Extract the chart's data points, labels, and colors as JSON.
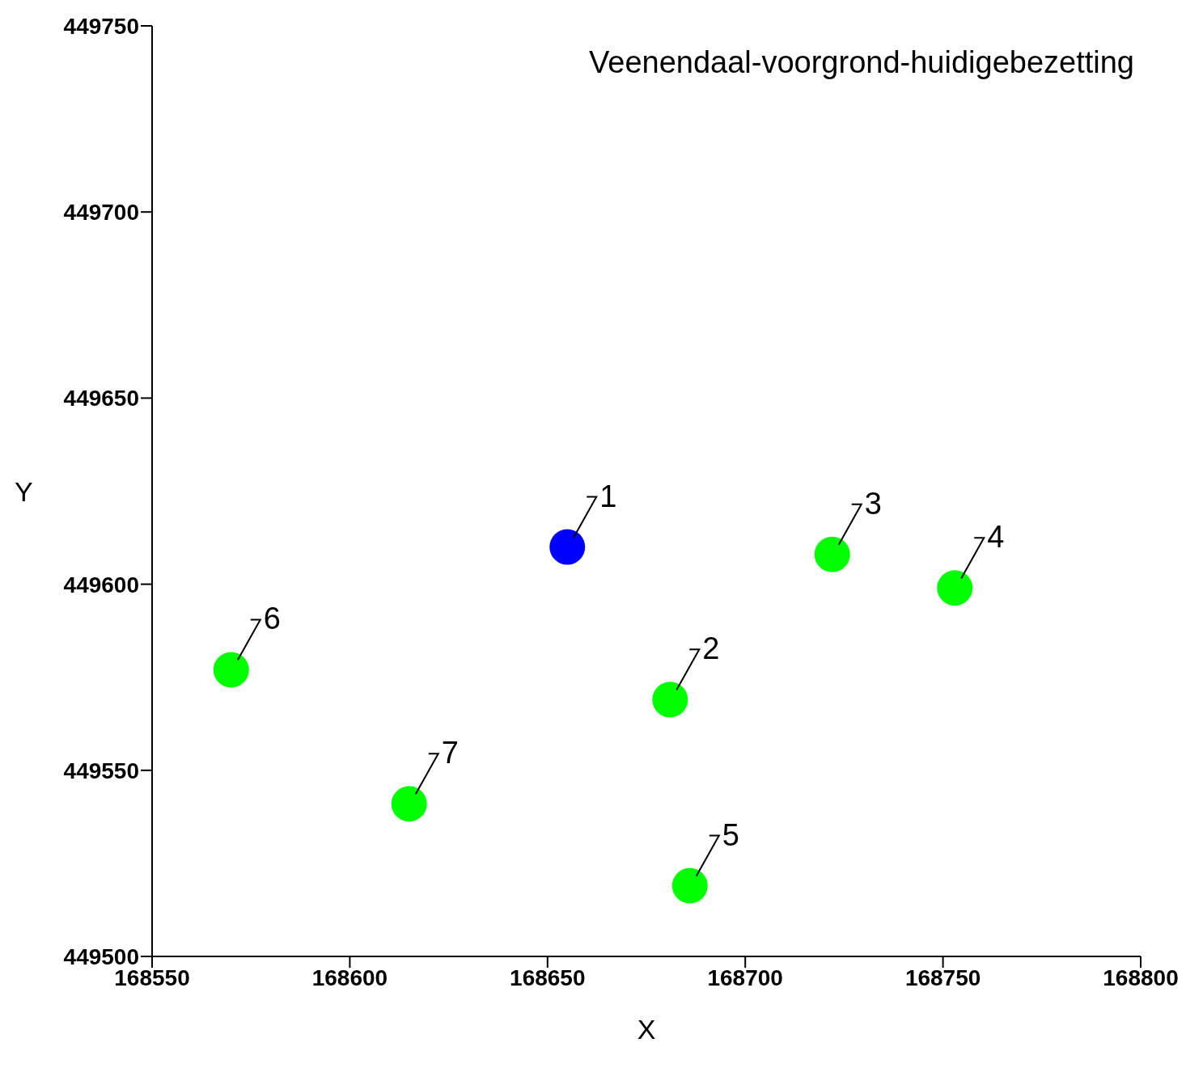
{
  "chart_data": {
    "type": "scatter",
    "title": "Veenendaal-voorgrond-huidigebezetting",
    "xlabel": "X",
    "ylabel": "Y",
    "x": [
      168655,
      168681,
      168722,
      168753,
      168686,
      168570,
      168615
    ],
    "values": [
      449610,
      449569,
      449608,
      449599,
      449519,
      449577,
      449541
    ],
    "colors": [
      "#0000ff",
      "#00ff00",
      "#00ff00",
      "#00ff00",
      "#00ff00",
      "#00ff00",
      "#00ff00"
    ],
    "xlim": [
      168550,
      168800
    ],
    "xticks": [
      168550,
      168600,
      168650,
      168700,
      168750,
      168800
    ],
    "ylim": [
      449500,
      449750
    ],
    "yticks": [
      449500,
      449550,
      449600,
      449650,
      449700,
      449750
    ],
    "grid": false,
    "legend": false,
    "marker": "circle",
    "annotations": [
      {
        "text": "1",
        "x": 168655,
        "y": 449610
      },
      {
        "text": "2",
        "x": 168681,
        "y": 449569
      },
      {
        "text": "3",
        "x": 168722,
        "y": 449608
      },
      {
        "text": "4",
        "x": 168753,
        "y": 449599
      },
      {
        "text": "5",
        "x": 168686,
        "y": 449519
      },
      {
        "text": "6",
        "x": 168570,
        "y": 449577
      },
      {
        "text": "7",
        "x": 168615,
        "y": 449541
      }
    ]
  }
}
